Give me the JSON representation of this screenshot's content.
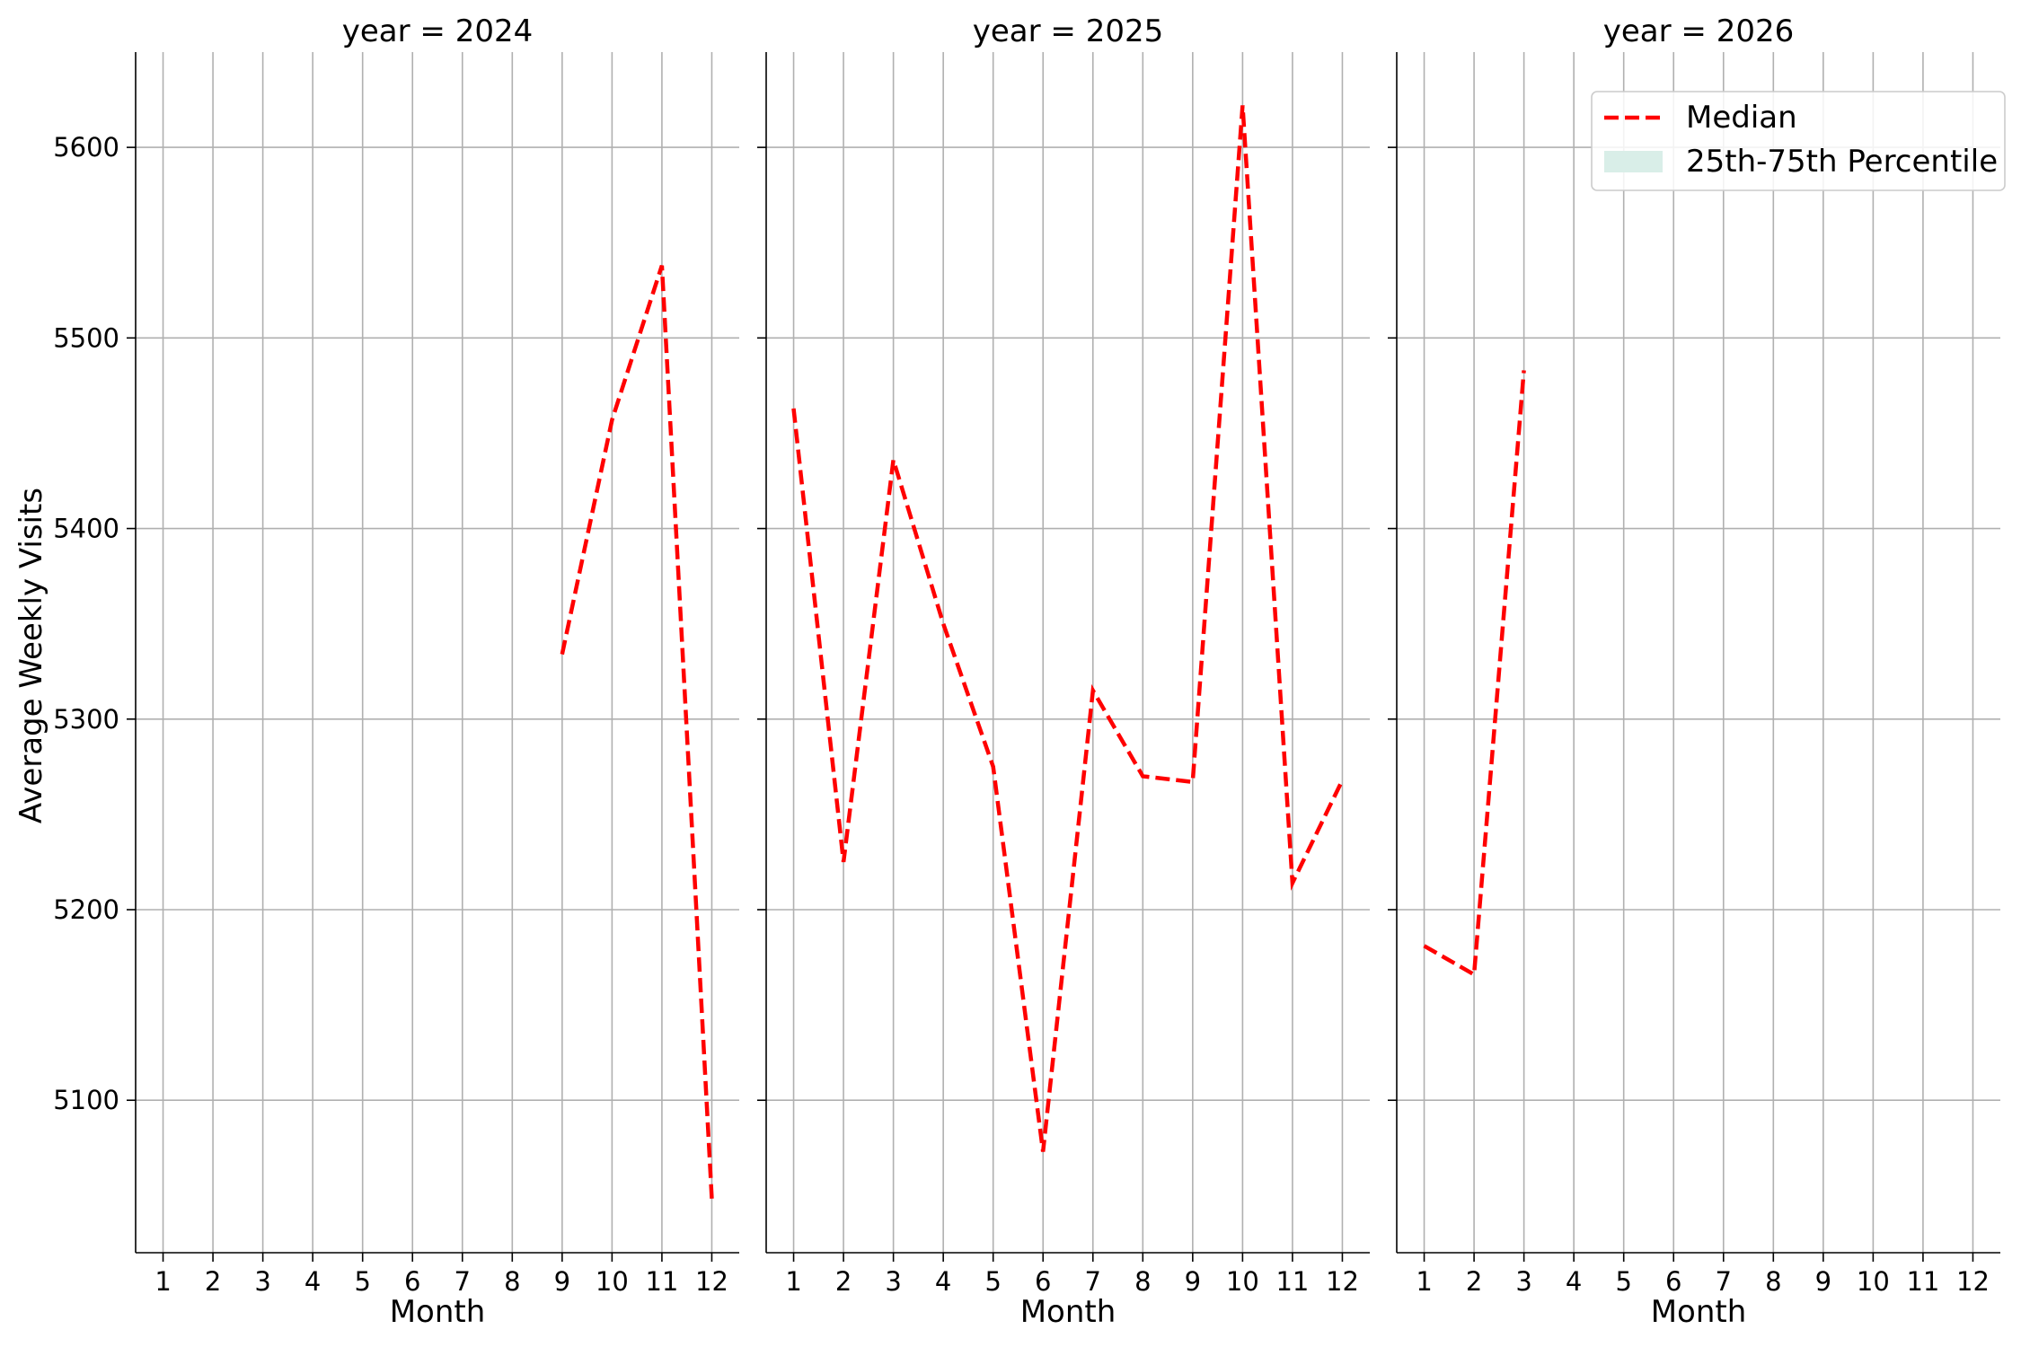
{
  "chart_data": {
    "type": "line",
    "layout": "facet-columns",
    "ylabel": "Average Weekly Visits",
    "xlabel": "Month",
    "ylim": [
      5020,
      5650
    ],
    "yticks": [
      5100,
      5200,
      5300,
      5400,
      5500,
      5600
    ],
    "xticks": [
      1,
      2,
      3,
      4,
      5,
      6,
      7,
      8,
      9,
      10,
      11,
      12
    ],
    "xlim": [
      0.45,
      12.55
    ],
    "grid": true,
    "legend": {
      "placement": "top-right",
      "entries": [
        {
          "label": "Median",
          "color": "#ff0000",
          "style": "dashed"
        },
        {
          "label": "25th-75th Percentile",
          "color": "#d9eee8",
          "style": "fill"
        }
      ]
    },
    "panels": [
      {
        "title": "year = 2024",
        "series": [
          {
            "name": "Median",
            "x": [
              9,
              10,
              11,
              12
            ],
            "y": [
              5334,
              5457,
              5538,
              5048
            ]
          }
        ]
      },
      {
        "title": "year = 2025",
        "series": [
          {
            "name": "Median",
            "x": [
              1,
              2,
              3,
              4,
              5,
              6,
              7,
              8,
              9,
              10,
              11,
              12
            ],
            "y": [
              5463,
              5225,
              5436,
              5350,
              5275,
              5073,
              5315,
              5270,
              5267,
              5622,
              5214,
              5268
            ]
          }
        ]
      },
      {
        "title": "year = 2026",
        "series": [
          {
            "name": "Median",
            "x": [
              1,
              2,
              3
            ],
            "y": [
              5181,
              5166,
              5483
            ]
          }
        ]
      }
    ],
    "colors": {
      "median": "#ff0000",
      "percentile_band": "#d9eee8",
      "grid": "#b0b0b0"
    }
  }
}
